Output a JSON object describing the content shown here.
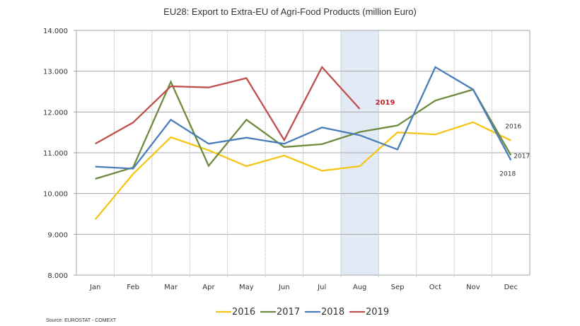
{
  "chart_data": {
    "type": "line",
    "title": "EU28: Export to Extra-EU of Agri-Food Products (million Euro)",
    "xlabel": "",
    "ylabel": "",
    "ylim": [
      8000,
      14000
    ],
    "yticks": [
      8000,
      9000,
      10000,
      11000,
      12000,
      13000,
      14000
    ],
    "ytick_labels": [
      "8.000",
      "9.000",
      "10.000",
      "11.000",
      "12.000",
      "13.000",
      "14.000"
    ],
    "grid": true,
    "categories": [
      "Jan",
      "Feb",
      "Mar",
      "Apr",
      "May",
      "Jun",
      "Jul",
      "Aug",
      "Sep",
      "Oct",
      "Nov",
      "Dec"
    ],
    "highlight_category": "Aug",
    "highlight_color": "#e2eaf5",
    "series": [
      {
        "name": "2016",
        "color": "#f5c518",
        "values": [
          9365,
          10480,
          11380,
          11060,
          10670,
          10930,
          10560,
          10670,
          11500,
          11450,
          11750,
          11300
        ]
      },
      {
        "name": "2017",
        "color": "#6e8b3d",
        "values": [
          10360,
          10640,
          12740,
          10680,
          11810,
          11140,
          11210,
          11510,
          11670,
          12280,
          12550,
          10940
        ]
      },
      {
        "name": "2018",
        "color": "#4a7ebb",
        "values": [
          10660,
          10610,
          11810,
          11220,
          11370,
          11220,
          11620,
          11430,
          11080,
          13100,
          12550,
          10820
        ]
      },
      {
        "name": "2019",
        "color": "#c0504d",
        "values": [
          11220,
          11740,
          12630,
          12600,
          12830,
          11310,
          13100,
          12075
        ]
      }
    ],
    "annotations": [
      {
        "text": "2019",
        "near": "2019 Aug",
        "color": "#c0272d"
      },
      {
        "text": "2016",
        "near": "2016 Dec"
      },
      {
        "text": "2017",
        "near": "2017 Dec"
      },
      {
        "text": "2018",
        "near": "2018 Dec"
      }
    ],
    "legend_position": "bottom",
    "source": "Source: EUROSTAT - COMEXT"
  }
}
